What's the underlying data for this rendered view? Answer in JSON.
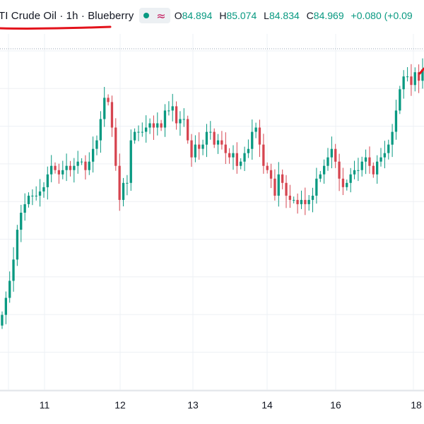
{
  "header": {
    "title": "TI Crude Oil · 1h · Blueberry",
    "status_icon": "market-open-dot-icon",
    "indicator_icon": "approx-wave-icon",
    "open_key": "O",
    "open": "84.894",
    "high_key": "H",
    "high": "85.074",
    "low_key": "L",
    "low": "84.834",
    "close_key": "C",
    "close": "84.969",
    "change": "+0.080 (+0.09"
  },
  "colors": {
    "up": "#089981",
    "down": "#d64550",
    "annotation": "#e3121b",
    "grid": "#edf0f4",
    "text": "#131722"
  },
  "chart_data": {
    "type": "candlestick",
    "x_tick_labels": [
      "11",
      "12",
      "13",
      "14",
      "16",
      "18"
    ],
    "grid": true,
    "price_line": "dotted",
    "annotations": [
      "red underline under title",
      "red mark at right edge"
    ],
    "series": [
      {
        "closes": [
          79.2,
          79.6,
          80.0,
          80.5,
          81.2,
          81.6,
          81.8,
          82.0,
          82.0,
          82.0,
          82.1,
          82.2,
          82.5,
          82.7,
          82.6,
          82.5,
          82.6,
          82.7,
          82.6,
          82.7,
          82.8,
          82.8,
          82.6,
          82.8,
          83.1,
          83.3,
          83.8,
          84.3,
          84.2,
          83.6,
          82.7,
          81.9,
          82.3,
          82.3,
          83.3,
          83.5,
          83.5,
          83.5,
          83.6,
          83.7,
          83.6,
          83.7,
          83.6,
          84.0,
          84.0,
          84.1,
          83.7,
          83.8,
          83.8,
          83.3,
          82.9,
          83.2,
          83.1,
          83.2,
          83.5,
          83.5,
          83.2,
          83.3,
          83.2,
          83.0,
          82.9,
          83.0,
          82.7,
          82.8,
          83.0,
          83.1,
          83.5,
          83.6,
          83.2,
          82.7,
          82.6,
          82.4,
          82.0,
          82.5,
          82.3,
          82.0,
          81.9,
          81.9,
          81.8,
          81.9,
          81.8,
          81.9,
          82.0,
          82.4,
          82.5,
          82.7,
          82.9,
          83.1,
          82.8,
          82.4,
          82.2,
          82.3,
          82.5,
          82.6,
          82.6,
          82.8,
          82.9,
          82.7,
          82.5,
          82.8,
          82.9,
          83.0,
          83.2,
          83.5,
          84.0,
          84.5,
          84.8,
          84.8,
          84.6,
          84.9,
          84.7,
          84.97
        ]
      }
    ]
  }
}
